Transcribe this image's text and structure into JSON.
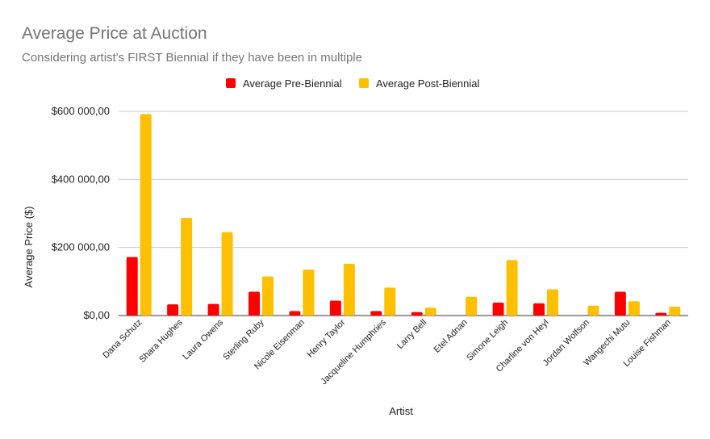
{
  "chart_data": {
    "type": "bar",
    "title": "Average Price at Auction",
    "subtitle": "Considering artist's FIRST Biennial if they have been in multiple",
    "xlabel": "Artist",
    "ylabel": "Average Price ($)",
    "ylim": [
      0,
      600000
    ],
    "yticks": [
      {
        "value": 0,
        "label": "$0,00"
      },
      {
        "value": 200000,
        "label": "$200 000,00"
      },
      {
        "value": 400000,
        "label": "$400 000,00"
      },
      {
        "value": 600000,
        "label": "$600 000,00"
      }
    ],
    "grid": true,
    "legend_position": "top",
    "categories": [
      "Dana Schutz",
      "Shara Hughes",
      "Laura Owens",
      "Sterling Ruby",
      "Nicole Eisenman",
      "Henry Taylor",
      "Jacqueline Humphries",
      "Larry Bell",
      "Etel Adnan",
      "Simone Leigh",
      "Charline von Heyl",
      "Jordan Wolfson",
      "Wangechi Mutu",
      "Louise Fishman"
    ],
    "series": [
      {
        "name": "Average Pre-Biennial",
        "color": "#ff0000",
        "values": [
          172000,
          33000,
          34000,
          70000,
          13000,
          44000,
          13000,
          10000,
          0,
          38000,
          36000,
          0,
          70000,
          8000
        ]
      },
      {
        "name": "Average Post-Biennial",
        "color": "#ffc000",
        "values": [
          592000,
          287000,
          245000,
          115000,
          135000,
          152000,
          82000,
          23000,
          55000,
          163000,
          77000,
          29000,
          42000,
          26000
        ]
      }
    ]
  }
}
